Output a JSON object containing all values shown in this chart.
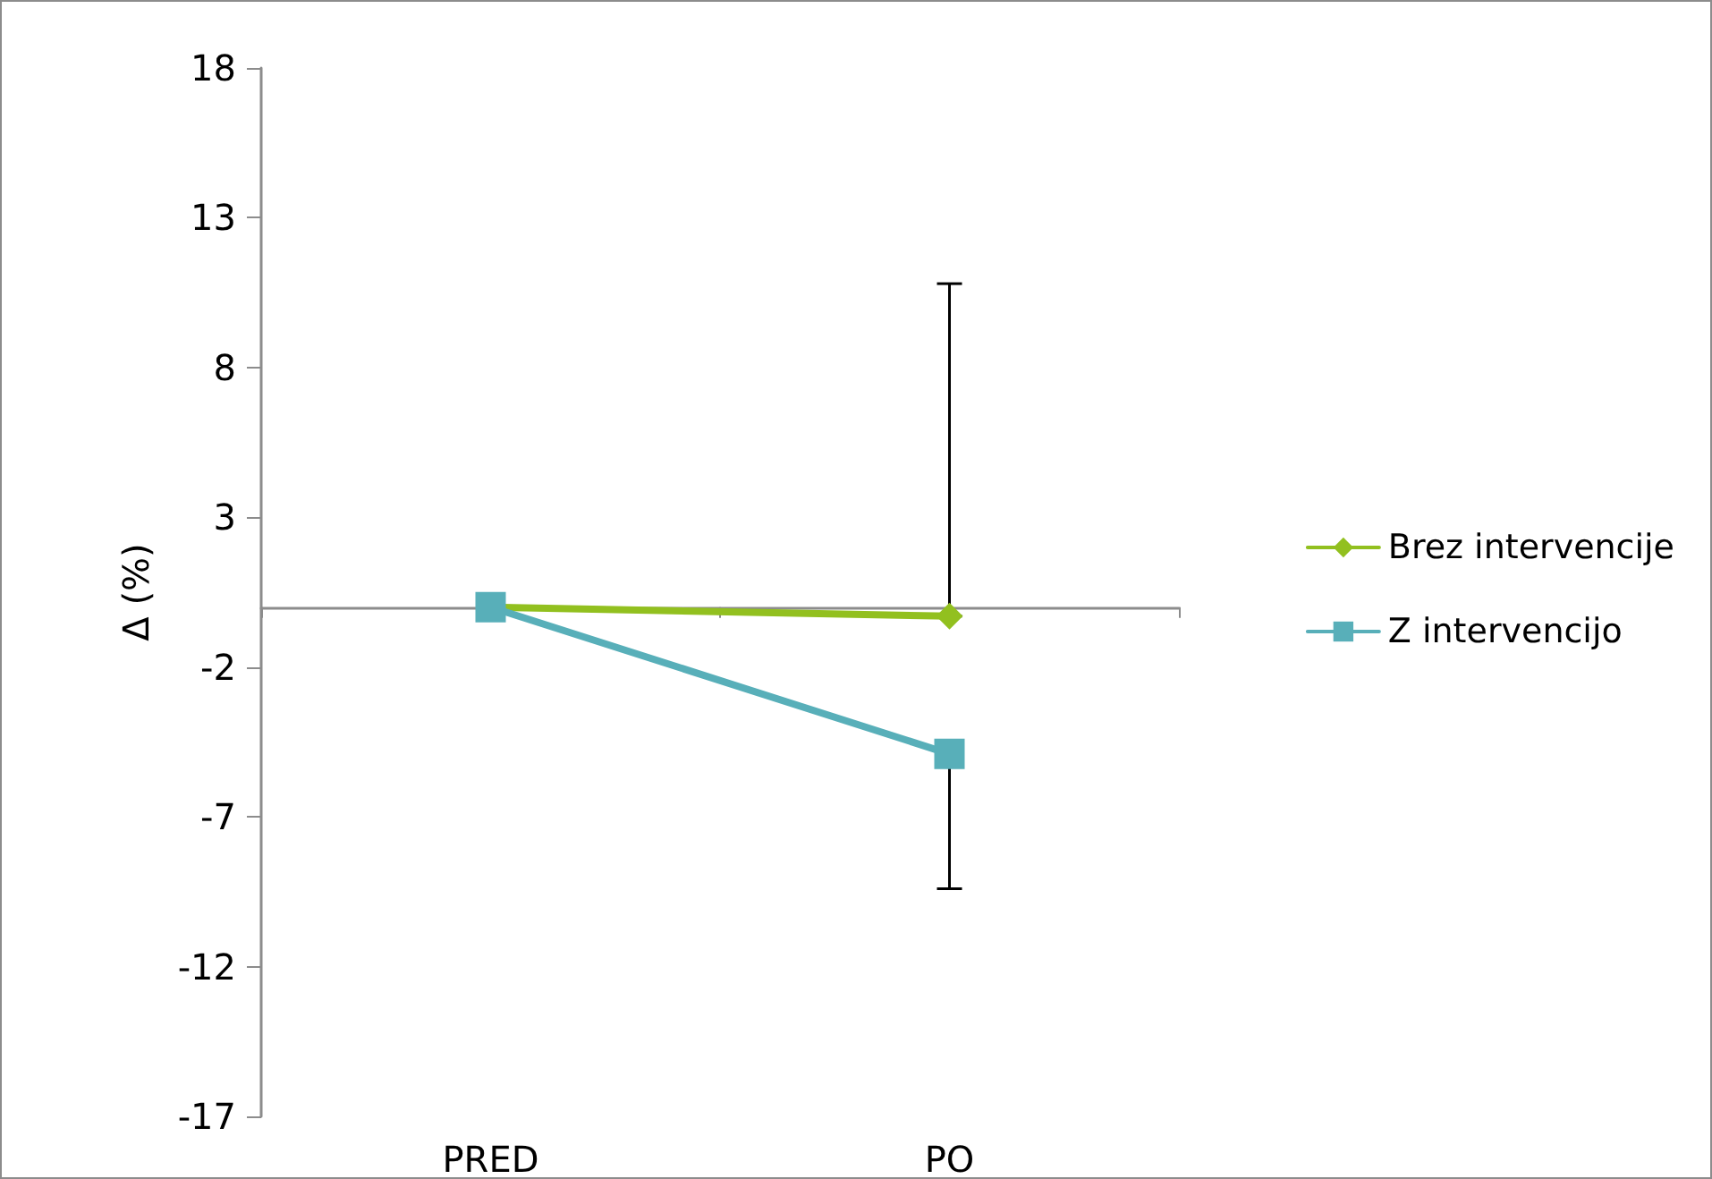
{
  "chart_data": {
    "type": "line",
    "ylabel": "Δ (%)",
    "categories": [
      "PRED",
      "PO"
    ],
    "series": [
      {
        "name": "Brez intervencije",
        "color": "#92c01f",
        "marker": "diamond",
        "values": [
          0,
          -0.3
        ],
        "errors": [
          null,
          [
            -0.3,
            10.8
          ]
        ]
      },
      {
        "name": "Z intervencijo",
        "color": "#58afb9",
        "marker": "square",
        "values": [
          0,
          -4.9
        ],
        "errors": [
          null,
          [
            -9.4,
            -4.9
          ]
        ]
      }
    ],
    "ylim": [
      -17,
      18
    ],
    "yticks": [
      18,
      13,
      8,
      3,
      -2,
      -7,
      -12,
      -17
    ],
    "grid": false,
    "legend": "right"
  }
}
